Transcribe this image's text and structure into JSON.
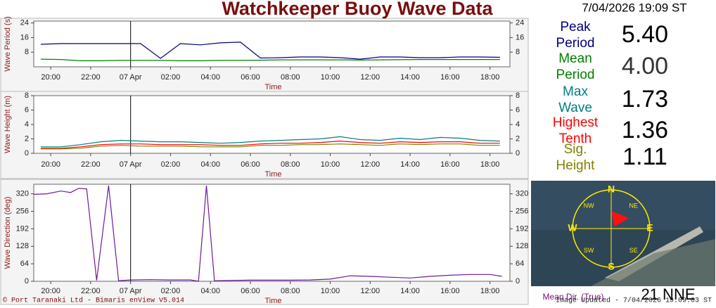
{
  "header": {
    "title": "Watchkeeper Buoy Wave Data",
    "timestamp": "7/04/2026 19:09 ST"
  },
  "chart_data": [
    {
      "type": "line",
      "y_label": "Wave Period (s)",
      "x_label": "Time",
      "x": [
        19.5,
        20.5,
        21.5,
        22.5,
        23.5,
        24.5,
        25.5,
        26.5,
        27.5,
        28.5,
        29.5,
        30.5,
        31.5,
        32.5,
        33.5,
        34.5,
        35.5,
        36.5,
        37.5,
        38.5,
        39.5,
        40.5,
        41.5,
        42.5
      ],
      "series": [
        {
          "name": "Peak Period",
          "color": "#000080",
          "values": [
            12.3,
            12.7,
            12.7,
            12.7,
            12.7,
            12.7,
            4.6,
            12.7,
            12.0,
            13.1,
            13.5,
            4.8,
            5.0,
            5.4,
            5.4,
            5.0,
            4.2,
            5.4,
            5.4,
            5.0,
            5.0,
            5.4,
            5.4,
            5.2
          ]
        },
        {
          "name": "Mean Period",
          "color": "#008000",
          "values": [
            4.2,
            4.0,
            3.3,
            3.3,
            3.5,
            3.5,
            3.5,
            3.3,
            3.3,
            3.5,
            3.5,
            3.6,
            3.8,
            3.8,
            3.8,
            3.8,
            3.7,
            3.8,
            3.9,
            4.0,
            4.0,
            4.0,
            4.0,
            4.0
          ]
        }
      ],
      "xlim": [
        19.15,
        43.0
      ],
      "xticks": [
        {
          "value": 20,
          "label": "20:00"
        },
        {
          "value": 22,
          "label": "22:00"
        },
        {
          "value": 24,
          "label": "07 Apr"
        },
        {
          "value": 26,
          "label": "02:00"
        },
        {
          "value": 28,
          "label": "04:00"
        },
        {
          "value": 30,
          "label": "06:00"
        },
        {
          "value": 32,
          "label": "08:00"
        },
        {
          "value": 34,
          "label": "10:00"
        },
        {
          "value": 36,
          "label": "12:00"
        },
        {
          "value": 38,
          "label": "14:00"
        },
        {
          "value": 40,
          "label": "16:00"
        },
        {
          "value": 42,
          "label": "18:00"
        }
      ],
      "day_marker": 24,
      "ylim": [
        0,
        25
      ],
      "yticks": [
        8,
        16,
        24
      ]
    },
    {
      "type": "line",
      "y_label": "Wave Height (m)",
      "x_label": "Time",
      "x": [
        19.5,
        20.5,
        21.5,
        22.5,
        23.5,
        24.5,
        25.5,
        26.5,
        27.5,
        28.5,
        29.5,
        30.5,
        31.5,
        32.5,
        33.5,
        34.5,
        35.5,
        36.5,
        37.5,
        38.5,
        39.5,
        40.5,
        41.5,
        42.5
      ],
      "series": [
        {
          "name": "Max Wave",
          "color": "#008080",
          "values": [
            0.9,
            0.9,
            1.2,
            1.6,
            1.8,
            1.7,
            1.6,
            1.6,
            1.5,
            1.4,
            1.5,
            1.7,
            1.8,
            1.9,
            2.0,
            2.3,
            1.9,
            1.8,
            2.1,
            1.9,
            2.2,
            2.1,
            1.8,
            1.7
          ]
        },
        {
          "name": "Highest Tenth",
          "color": "#ff0000",
          "values": [
            0.7,
            0.7,
            0.9,
            1.2,
            1.3,
            1.3,
            1.2,
            1.2,
            1.2,
            1.1,
            1.1,
            1.3,
            1.4,
            1.4,
            1.5,
            1.7,
            1.5,
            1.4,
            1.6,
            1.5,
            1.6,
            1.6,
            1.4,
            1.4
          ]
        },
        {
          "name": "Sig. Height",
          "color": "#808000",
          "values": [
            0.6,
            0.6,
            0.7,
            1.0,
            1.1,
            1.0,
            1.0,
            1.0,
            0.9,
            0.9,
            0.9,
            1.1,
            1.1,
            1.2,
            1.2,
            1.3,
            1.2,
            1.1,
            1.3,
            1.2,
            1.3,
            1.3,
            1.1,
            1.1
          ]
        }
      ],
      "xlim": [
        19.15,
        43.0
      ],
      "xticks": [
        {
          "value": 20,
          "label": "20:00"
        },
        {
          "value": 22,
          "label": "22:00"
        },
        {
          "value": 24,
          "label": "07 Apr"
        },
        {
          "value": 26,
          "label": "02:00"
        },
        {
          "value": 28,
          "label": "04:00"
        },
        {
          "value": 30,
          "label": "06:00"
        },
        {
          "value": 32,
          "label": "08:00"
        },
        {
          "value": 34,
          "label": "10:00"
        },
        {
          "value": 36,
          "label": "12:00"
        },
        {
          "value": 38,
          "label": "14:00"
        },
        {
          "value": 40,
          "label": "16:00"
        },
        {
          "value": 42,
          "label": "18:00"
        }
      ],
      "day_marker": 24,
      "ylim": [
        0,
        8
      ],
      "yticks": [
        0,
        2,
        4,
        6,
        8
      ]
    },
    {
      "type": "line",
      "y_label": "Wave Direction (deg)",
      "x_label": "Time",
      "x": [
        19.15,
        19.8,
        20.5,
        21.0,
        21.4,
        21.8,
        22.3,
        22.9,
        23.4,
        24,
        25,
        26,
        27,
        27.4,
        27.8,
        28.2,
        29,
        30,
        31,
        32,
        33,
        34,
        35,
        36,
        37,
        38,
        39,
        40,
        41,
        42,
        42.6
      ],
      "series": [
        {
          "name": "Mean Dir.",
          "color": "#6a1a9a",
          "values": [
            318,
            320,
            330,
            325,
            340,
            338,
            3,
            350,
            2,
            5,
            6,
            5,
            5,
            0,
            350,
            2,
            3,
            4,
            4,
            4,
            5,
            8,
            20,
            18,
            15,
            12,
            18,
            22,
            25,
            25,
            18
          ]
        }
      ],
      "xlim": [
        19.15,
        43.0
      ],
      "xticks": [
        {
          "value": 20,
          "label": "20:00"
        },
        {
          "value": 22,
          "label": "22:00"
        },
        {
          "value": 24,
          "label": "07 Apr"
        },
        {
          "value": 26,
          "label": "02:00"
        },
        {
          "value": 28,
          "label": "04:00"
        },
        {
          "value": 30,
          "label": "06:00"
        },
        {
          "value": 32,
          "label": "08:00"
        },
        {
          "value": 34,
          "label": "10:00"
        },
        {
          "value": 36,
          "label": "12:00"
        },
        {
          "value": 38,
          "label": "14:00"
        },
        {
          "value": 40,
          "label": "16:00"
        },
        {
          "value": 42,
          "label": "18:00"
        }
      ],
      "day_marker": 24,
      "ylim": [
        0,
        355
      ],
      "yticks": [
        0,
        64,
        128,
        192,
        256,
        320
      ]
    }
  ],
  "readings": [
    {
      "label": [
        "Peak",
        "Period"
      ],
      "value": "5.40",
      "color": "#000080",
      "value_color": "#000000"
    },
    {
      "label": [
        "Mean",
        "Period"
      ],
      "value": "4.00",
      "color": "#008000",
      "value_color": "#333333"
    },
    {
      "label": [
        "Max",
        "Wave"
      ],
      "value": "1.73",
      "color": "#008080",
      "value_color": "#000000"
    },
    {
      "label": [
        "Highest",
        "Tenth"
      ],
      "value": "1.36",
      "color": "#ff0000",
      "value_color": "#000000"
    },
    {
      "label": [
        "Sig.",
        "Height"
      ],
      "value": "1.11",
      "color": "#808000",
      "value_color": "#000000"
    }
  ],
  "compass": {
    "points": [
      "N",
      "NE",
      "E",
      "SE",
      "S",
      "SW",
      "W",
      "NW"
    ]
  },
  "wind": {
    "label": "Mean Dir. (True)",
    "value": "21 NNE"
  },
  "footer": {
    "credit": "© Port Taranaki Ltd - Bimaris enView V5.014",
    "updated": "Image Updated - 7/04/2026 19:09:03 ST"
  }
}
